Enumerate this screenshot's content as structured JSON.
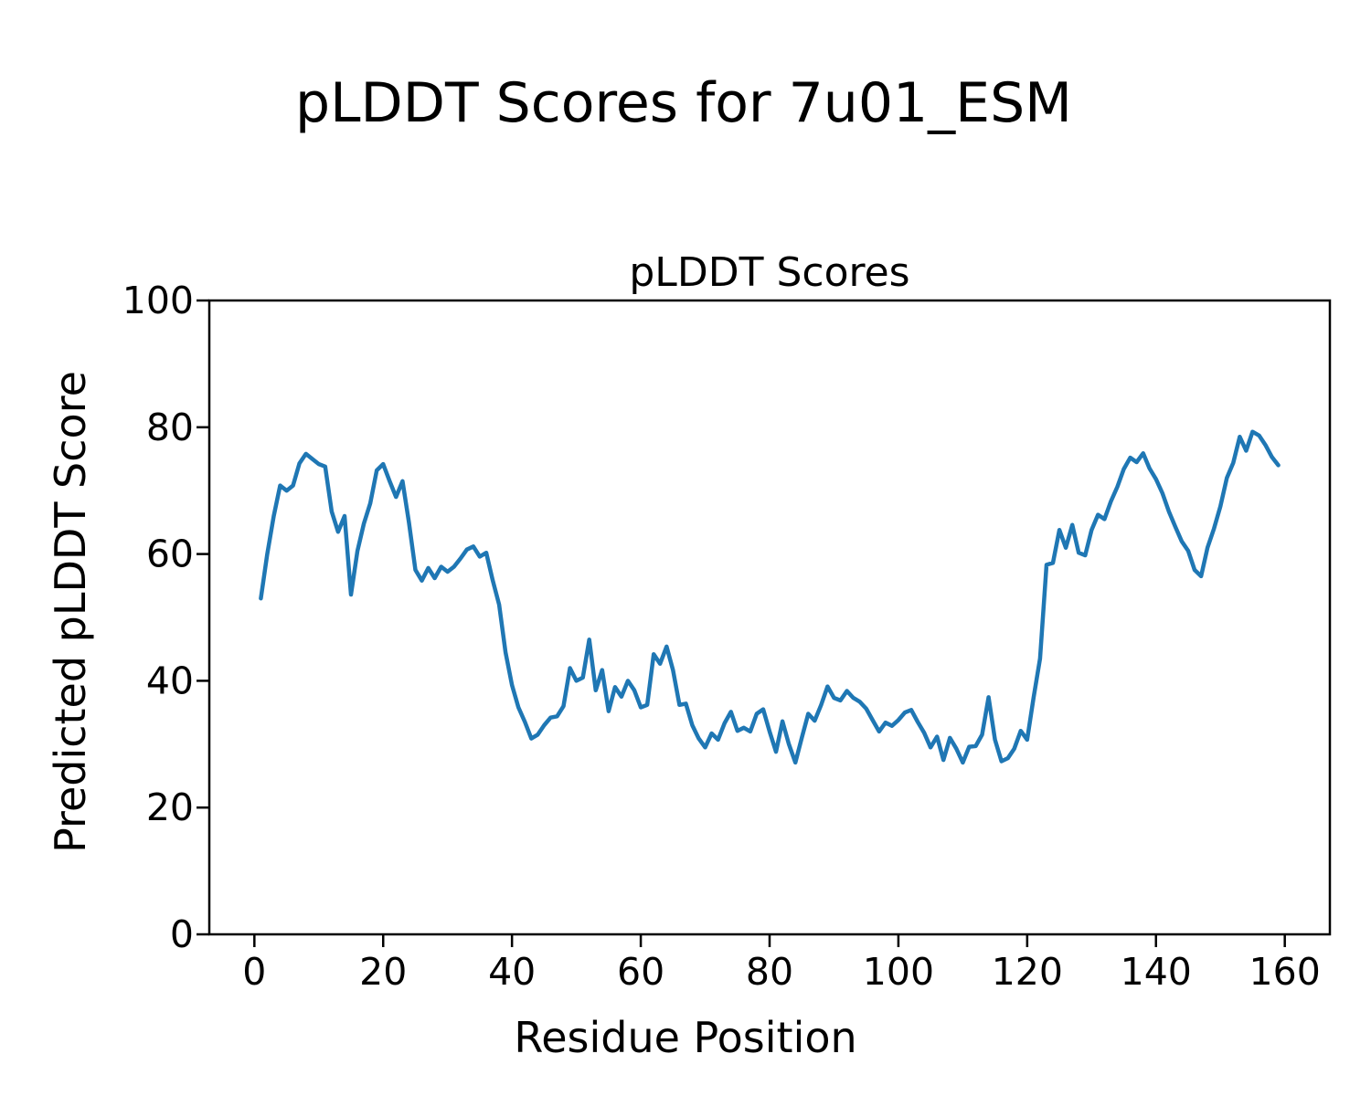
{
  "figure_title": "pLDDT Scores for 7u01_ESM",
  "chart_data": {
    "type": "line",
    "title": "pLDDT Scores",
    "xlabel": "Residue Position",
    "ylabel": "Predicted pLDDT Score",
    "x_range": [
      1,
      159
    ],
    "x_step": 1,
    "xlim": [
      -7,
      167
    ],
    "ylim": [
      0,
      100
    ],
    "x_ticks": [
      0,
      20,
      40,
      60,
      80,
      100,
      120,
      140,
      160
    ],
    "y_ticks": [
      0,
      20,
      40,
      60,
      80,
      100
    ],
    "grid": false,
    "legend_position": "none",
    "line_color": "#1f77b4",
    "background_color": "#ffffff",
    "values": [
      53.0,
      60.0,
      66.0,
      70.8,
      70.0,
      70.8,
      74.3,
      75.8,
      75.0,
      74.2,
      73.8,
      66.7,
      63.5,
      66.0,
      53.6,
      60.5,
      64.8,
      68.0,
      73.2,
      74.2,
      71.5,
      69.0,
      71.5,
      65.0,
      57.5,
      55.8,
      57.8,
      56.2,
      58.0,
      57.2,
      58.0,
      59.3,
      60.7,
      61.2,
      59.6,
      60.2,
      55.9,
      52.0,
      44.5,
      39.3,
      35.8,
      33.5,
      30.9,
      31.5,
      33.0,
      34.2,
      34.4,
      36.0,
      42.0,
      40.0,
      40.5,
      46.5,
      38.5,
      41.7,
      35.2,
      39.0,
      37.5,
      40.0,
      38.5,
      35.8,
      36.2,
      44.2,
      42.7,
      45.4,
      41.7,
      36.2,
      36.4,
      33.0,
      30.9,
      29.5,
      31.7,
      30.7,
      33.3,
      35.1,
      32.1,
      32.6,
      32.0,
      34.8,
      35.5,
      32.0,
      28.8,
      33.6,
      30.0,
      27.1,
      31.0,
      34.8,
      33.7,
      36.2,
      39.1,
      37.3,
      36.9,
      38.4,
      37.3,
      36.7,
      35.6,
      33.8,
      32.0,
      33.4,
      32.9,
      33.8,
      35.0,
      35.4,
      33.5,
      31.8,
      29.5,
      31.2,
      27.5,
      31.0,
      29.3,
      27.1,
      29.6,
      29.7,
      31.5,
      37.4,
      30.7,
      27.3,
      27.8,
      29.3,
      32.1,
      30.7,
      37.4,
      43.5,
      58.3,
      58.6,
      63.8,
      61.0,
      64.6,
      60.2,
      59.8,
      63.8,
      66.2,
      65.5,
      68.3,
      70.6,
      73.4,
      75.2,
      74.5,
      75.9,
      73.5,
      71.8,
      69.6,
      66.7,
      64.3,
      62.0,
      60.5,
      57.5,
      56.5,
      61.0,
      64.0,
      67.5,
      72.0,
      74.4,
      78.5,
      76.3,
      79.3,
      78.7,
      77.2,
      75.3,
      74.0
    ]
  }
}
